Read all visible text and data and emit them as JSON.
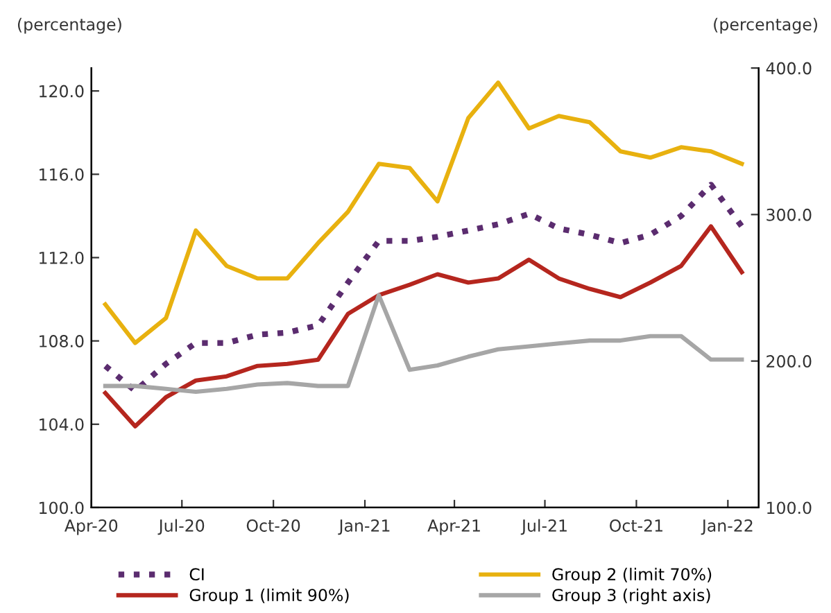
{
  "chart_data": {
    "type": "line",
    "ylabel": "(percentage)",
    "y2label": "(percentage)",
    "x": [
      "2020-04-15",
      "2020-05-15",
      "2020-06-15",
      "2020-07-15",
      "2020-08-15",
      "2020-09-15",
      "2020-10-15",
      "2020-11-15",
      "2020-12-15",
      "2021-01-15",
      "2021-02-15",
      "2021-03-15",
      "2021-04-15",
      "2021-05-15",
      "2021-06-15",
      "2021-07-15",
      "2021-08-15",
      "2021-09-15",
      "2021-10-15",
      "2021-11-15",
      "2021-12-15",
      "2022-01-15"
    ],
    "series": [
      {
        "name": "CI",
        "color": "#5b2c6f",
        "line_style": "dotted",
        "values": [
          106.8,
          105.6,
          106.9,
          107.9,
          107.9,
          108.3,
          108.4,
          108.75,
          110.8,
          112.8,
          112.8,
          113.0,
          113.3,
          113.6,
          114.1,
          113.4,
          113.1,
          112.7,
          113.1,
          114.0,
          115.5,
          113.5
        ]
      },
      {
        "name": "Group 2 (limit 70%)",
        "color": "#e8b10f",
        "values": [
          109.75,
          107.9,
          109.1,
          113.3,
          111.6,
          111.0,
          111.0,
          112.7,
          114.2,
          116.5,
          116.3,
          114.7,
          118.7,
          120.4,
          118.2,
          118.8,
          118.5,
          117.1,
          116.8,
          117.3,
          117.1,
          116.5
        ]
      },
      {
        "name": "Group 1 (limit 90%)",
        "color": "#b5261e",
        "values": [
          105.5,
          103.9,
          105.3,
          106.1,
          106.3,
          106.8,
          106.9,
          107.1,
          109.3,
          110.2,
          110.7,
          111.2,
          110.8,
          111.0,
          111.9,
          111.0,
          110.5,
          110.1,
          110.8,
          111.6,
          113.5,
          111.3
        ]
      },
      {
        "name": "Group 3 (right axis)",
        "color": "#a6a6a6",
        "axis": "y2",
        "values": [
          183,
          183,
          181,
          179,
          181,
          184,
          185,
          183,
          183,
          245,
          194,
          197,
          203,
          208,
          210,
          212,
          214,
          214,
          217,
          217,
          201,
          201
        ]
      }
    ],
    "xlim": [
      "2020-04-01",
      "2022-02-01"
    ],
    "xticks": [
      {
        "value": "2020-04-01",
        "label": "Apr-20"
      },
      {
        "value": "2020-07-01",
        "label": "Jul-20"
      },
      {
        "value": "2020-10-01",
        "label": "Oct-20"
      },
      {
        "value": "2021-01-01",
        "label": "Jan-21"
      },
      {
        "value": "2021-04-01",
        "label": "Apr-21"
      },
      {
        "value": "2021-07-01",
        "label": "Jul-21"
      },
      {
        "value": "2021-10-01",
        "label": "Oct-21"
      },
      {
        "value": "2022-01-01",
        "label": "Jan-22"
      }
    ],
    "ylim": [
      100,
      121.1
    ],
    "yticks": [
      {
        "value": 100,
        "label": "100.0"
      },
      {
        "value": 104,
        "label": "104.0"
      },
      {
        "value": 108,
        "label": "108.0"
      },
      {
        "value": 112,
        "label": "112.0"
      },
      {
        "value": 116,
        "label": "116.0"
      },
      {
        "value": 120,
        "label": "120.0"
      }
    ],
    "y2lim": [
      100,
      400
    ],
    "y2ticks": [
      {
        "value": 100,
        "label": "100.0"
      },
      {
        "value": 200,
        "label": "200.0"
      },
      {
        "value": 300,
        "label": "300.0"
      },
      {
        "value": 400,
        "label": "400.0"
      }
    ],
    "grid": false,
    "legend": "bottom"
  }
}
